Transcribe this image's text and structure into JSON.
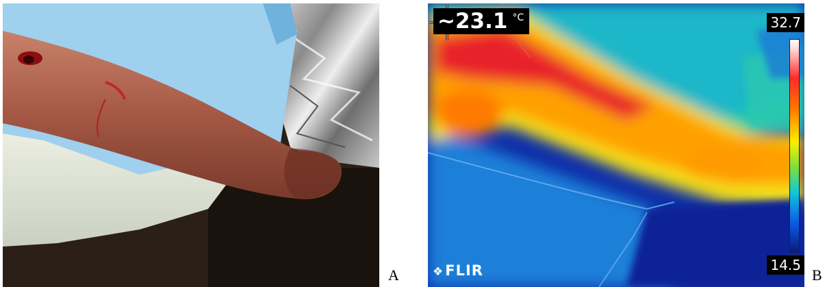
{
  "panel_a": {
    "letter": "A",
    "description_icon": "photo-forearm"
  },
  "panel_b": {
    "letter": "B",
    "spot_temperature": "~23.1",
    "unit": "°C",
    "scale_max": "32.7",
    "scale_min": "14.5",
    "brand": "FLIR",
    "colors": {
      "hot": "#e8202a",
      "warm": "#ff9a00",
      "mid": "#f2e21a",
      "cool": "#3fcf6a",
      "cold": "#1560d8",
      "background": "#0b2a9a"
    }
  }
}
